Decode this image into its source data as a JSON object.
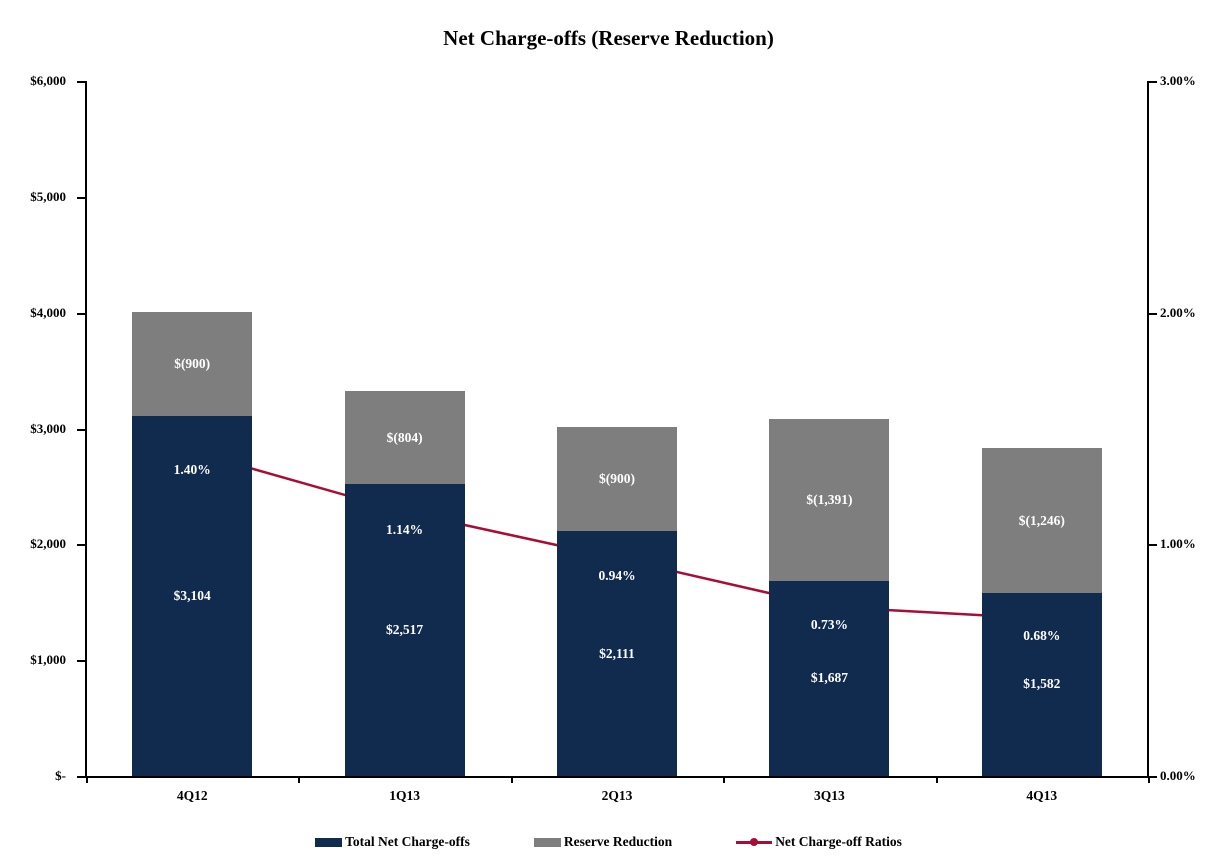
{
  "chart_data": {
    "type": "bar",
    "subtype": "stacked-bars-with-line-overlay",
    "title": "Net Charge-offs (Reserve Reduction)",
    "categories": [
      "4Q12",
      "1Q13",
      "2Q13",
      "3Q13",
      "4Q13"
    ],
    "series": [
      {
        "name": "Total Net Charge-offs",
        "type": "bar",
        "axis": "left",
        "color": "#102B4E",
        "label_color": "#FFFFFF",
        "values": [
          3104,
          2517,
          2111,
          1687,
          1582
        ],
        "labels": [
          "$3,104",
          "$2,517",
          "$2,111",
          "$1,687",
          "$1,582"
        ]
      },
      {
        "name": "Reserve Reduction",
        "type": "bar",
        "axis": "left",
        "color": "#7E7E7E",
        "label_color": "#FFFFFF",
        "values": [
          900,
          804,
          900,
          1391,
          1246
        ],
        "labels": [
          "$(900)",
          "$(804)",
          "$(900)",
          "$(1,391)",
          "$(1,246)"
        ]
      },
      {
        "name": "Net Charge-off Ratios",
        "type": "line",
        "axis": "right",
        "color": "#A80D35",
        "label_color": "#FFFFFF",
        "values": [
          1.4,
          1.14,
          0.94,
          0.73,
          0.68
        ],
        "labels": [
          "1.40%",
          "1.14%",
          "0.94%",
          "0.73%",
          "0.68%"
        ]
      }
    ],
    "left_axis": {
      "min": 0,
      "max": 6000,
      "ticks": [
        {
          "value": 0,
          "label": "$-"
        },
        {
          "value": 1000,
          "label": "$1,000"
        },
        {
          "value": 2000,
          "label": "$2,000"
        },
        {
          "value": 3000,
          "label": "$3,000"
        },
        {
          "value": 4000,
          "label": "$4,000"
        },
        {
          "value": 5000,
          "label": "$5,000"
        },
        {
          "value": 6000,
          "label": "$6,000"
        }
      ]
    },
    "right_axis": {
      "min": 0,
      "max": 3,
      "ticks": [
        {
          "value": 0,
          "label": "0.00%"
        },
        {
          "value": 1,
          "label": "1.00%"
        },
        {
          "value": 2,
          "label": "2.00%"
        },
        {
          "value": 3,
          "label": "3.00%"
        }
      ]
    },
    "legend": [
      {
        "label": "Total Net Charge-offs",
        "swatch": "bar",
        "color": "#102B4E"
      },
      {
        "label": "Reserve Reduction",
        "swatch": "bar",
        "color": "#7E7E7E"
      },
      {
        "label": "Net Charge-off Ratios",
        "swatch": "line",
        "color": "#A80D35"
      }
    ],
    "legend_position": "bottom",
    "grid": false,
    "axis_color": "#000000",
    "background": "#FFFFFF"
  }
}
